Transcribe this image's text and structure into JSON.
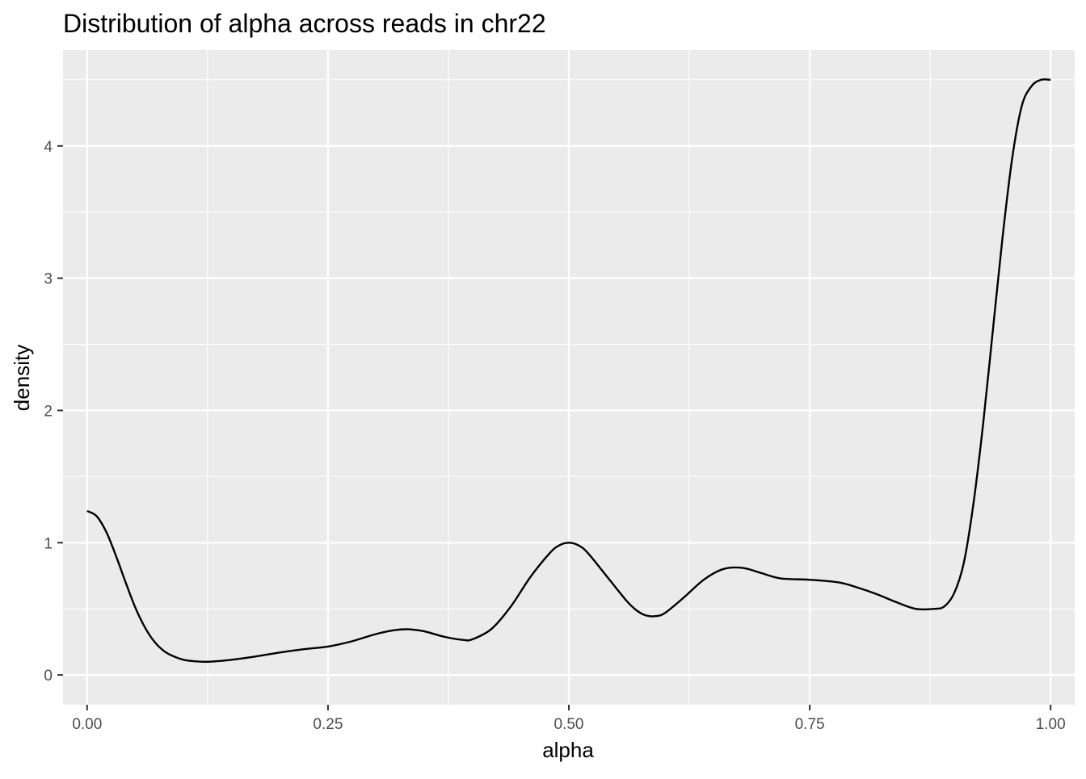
{
  "chart_data": {
    "type": "line",
    "title": "Distribution of alpha across reads in chr22",
    "xlabel": "alpha",
    "ylabel": "density",
    "xlim": [
      -0.025,
      1.025
    ],
    "ylim": [
      -0.225,
      4.725
    ],
    "x_ticks": [
      0.0,
      0.25,
      0.5,
      0.75,
      1.0
    ],
    "x_tick_labels": [
      "0.00",
      "0.25",
      "0.50",
      "0.75",
      "1.00"
    ],
    "y_ticks": [
      0,
      1,
      2,
      3,
      4
    ],
    "y_tick_labels": [
      "0",
      "1",
      "2",
      "3",
      "4"
    ],
    "grid": true,
    "legend": "none",
    "colors": {
      "panel": "#ebebeb",
      "grid": "#ffffff",
      "line": "#000000",
      "tick_text": "#4d4d4d",
      "axis_text": "#000000"
    },
    "series": [
      {
        "x": [
          0.0,
          0.01,
          0.02,
          0.03,
          0.04,
          0.05,
          0.06,
          0.07,
          0.08,
          0.09,
          0.1,
          0.11,
          0.125,
          0.15,
          0.175,
          0.2,
          0.225,
          0.25,
          0.275,
          0.3,
          0.32,
          0.335,
          0.35,
          0.37,
          0.39,
          0.4,
          0.42,
          0.44,
          0.46,
          0.48,
          0.49,
          0.5,
          0.51,
          0.52,
          0.54,
          0.56,
          0.57,
          0.58,
          0.59,
          0.6,
          0.62,
          0.64,
          0.66,
          0.68,
          0.7,
          0.72,
          0.75,
          0.78,
          0.8,
          0.82,
          0.84,
          0.86,
          0.88,
          0.89,
          0.9,
          0.91,
          0.92,
          0.93,
          0.94,
          0.95,
          0.96,
          0.97,
          0.98,
          0.99,
          1.0
        ],
        "y": [
          1.24,
          1.2,
          1.08,
          0.9,
          0.7,
          0.51,
          0.36,
          0.25,
          0.18,
          0.14,
          0.115,
          0.105,
          0.1,
          0.115,
          0.14,
          0.17,
          0.195,
          0.215,
          0.255,
          0.31,
          0.34,
          0.345,
          0.33,
          0.29,
          0.265,
          0.27,
          0.35,
          0.52,
          0.74,
          0.92,
          0.98,
          1.0,
          0.98,
          0.92,
          0.74,
          0.56,
          0.49,
          0.45,
          0.445,
          0.47,
          0.59,
          0.72,
          0.8,
          0.81,
          0.77,
          0.73,
          0.72,
          0.7,
          0.66,
          0.61,
          0.55,
          0.5,
          0.5,
          0.52,
          0.62,
          0.85,
          1.3,
          1.9,
          2.6,
          3.3,
          3.9,
          4.3,
          4.45,
          4.5,
          4.5
        ]
      }
    ]
  }
}
